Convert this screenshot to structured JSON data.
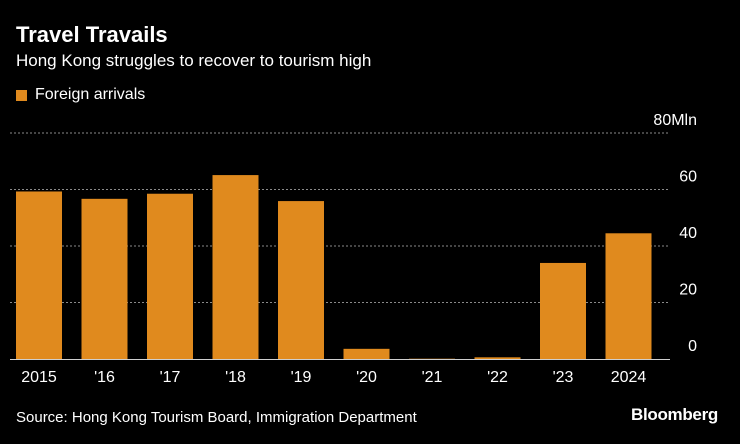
{
  "header": {
    "title": "Travel Travails",
    "subtitle": "Hong Kong struggles to recover to tourism high"
  },
  "legend": {
    "label": "Foreign arrivals",
    "color": "#e08a1e"
  },
  "footer": {
    "source": "Source: Hong Kong Tourism Board, Immigration Department",
    "brand": "Bloomberg"
  },
  "chart_data": {
    "type": "bar",
    "title": "Travel Travails",
    "subtitle": "Hong Kong struggles to recover to tourism high",
    "categories": [
      "2015",
      "'16",
      "'17",
      "'18",
      "'19",
      "'20",
      "'21",
      "'22",
      "'23",
      "2024"
    ],
    "series": [
      {
        "name": "Foreign arrivals",
        "color": "#e08a1e",
        "values": [
          59.3,
          56.7,
          58.5,
          65.1,
          55.9,
          3.6,
          0.1,
          0.6,
          34.0,
          44.5
        ]
      }
    ],
    "ylim": [
      0,
      80
    ],
    "yticks": [
      0,
      20,
      40,
      60,
      80
    ],
    "ytick_labels": [
      "0",
      "20",
      "40",
      "60",
      "80Mln"
    ],
    "xlabel": "",
    "ylabel": "",
    "grid": true,
    "legend_position": "top-left"
  }
}
